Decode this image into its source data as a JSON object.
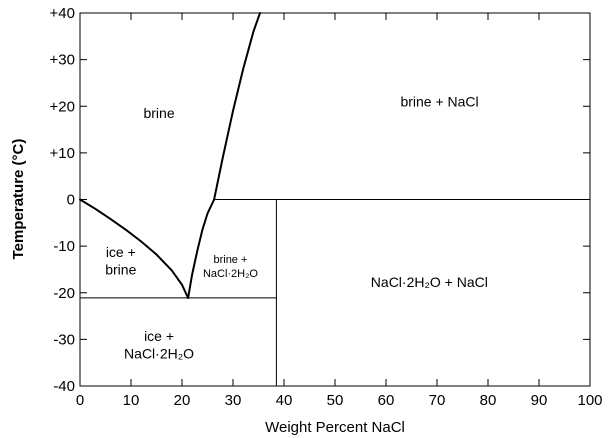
{
  "chart_data": {
    "type": "line",
    "xlabel": "Weight Percent NaCl",
    "ylabel": "Temperature (°C)",
    "xlim": [
      0,
      100
    ],
    "ylim": [
      -40,
      40
    ],
    "x_ticks": [
      0,
      10,
      20,
      30,
      40,
      50,
      60,
      70,
      80,
      90,
      100
    ],
    "x_tick_labels": [
      "0",
      "10",
      "20",
      "30",
      "40",
      "50",
      "60",
      "70",
      "80",
      "90",
      "100"
    ],
    "y_ticks": [
      40,
      30,
      20,
      10,
      0,
      -10,
      -20,
      -30,
      -40
    ],
    "y_tick_labels": [
      "+40",
      "+30",
      "+20",
      "+10",
      "0",
      "-10",
      "-20",
      "-30",
      "-40"
    ],
    "series": [
      {
        "x": [
          0,
          3,
          6,
          9,
          12,
          15,
          18,
          20,
          21.2
        ],
        "y": [
          0,
          -2,
          -4.2,
          -6.5,
          -9,
          -11.8,
          -15.2,
          -18.3,
          -21.1
        ]
      },
      {
        "x": [
          21.2,
          22,
          23,
          24,
          25,
          26.3
        ],
        "y": [
          -21.1,
          -16,
          -11,
          -6.5,
          -3,
          0
        ]
      },
      {
        "x": [
          26.3,
          28,
          30,
          32,
          34,
          35.3
        ],
        "y": [
          0,
          9,
          19,
          28,
          36,
          40
        ]
      },
      {
        "x": [
          26.3,
          100
        ],
        "y": [
          0,
          0
        ]
      },
      {
        "x": [
          0,
          38.5
        ],
        "y": [
          -21.1,
          -21.1
        ]
      },
      {
        "x": [
          38.5,
          38.5
        ],
        "y": [
          0,
          -40
        ]
      }
    ],
    "regions": [
      {
        "lines": [
          "brine"
        ],
        "x": 15.5,
        "y": 18.5,
        "size": 14
      },
      {
        "lines": [
          "brine + NaCl"
        ],
        "x": 70.5,
        "y": 21,
        "size": 14
      },
      {
        "lines": [
          "ice +",
          "brine"
        ],
        "x": 8,
        "y": -13.2,
        "size": 14
      },
      {
        "lines": [
          "brine +",
          "NaCl·2H₂O"
        ],
        "x": 29.5,
        "y": -14.3,
        "size": 11
      },
      {
        "lines": [
          "NaCl·2H₂O + NaCl"
        ],
        "x": 68.5,
        "y": -17.7,
        "size": 14
      },
      {
        "lines": [
          "ice +",
          "NaCl·2H₂O"
        ],
        "x": 15.5,
        "y": -31.2,
        "size": 14
      }
    ]
  }
}
